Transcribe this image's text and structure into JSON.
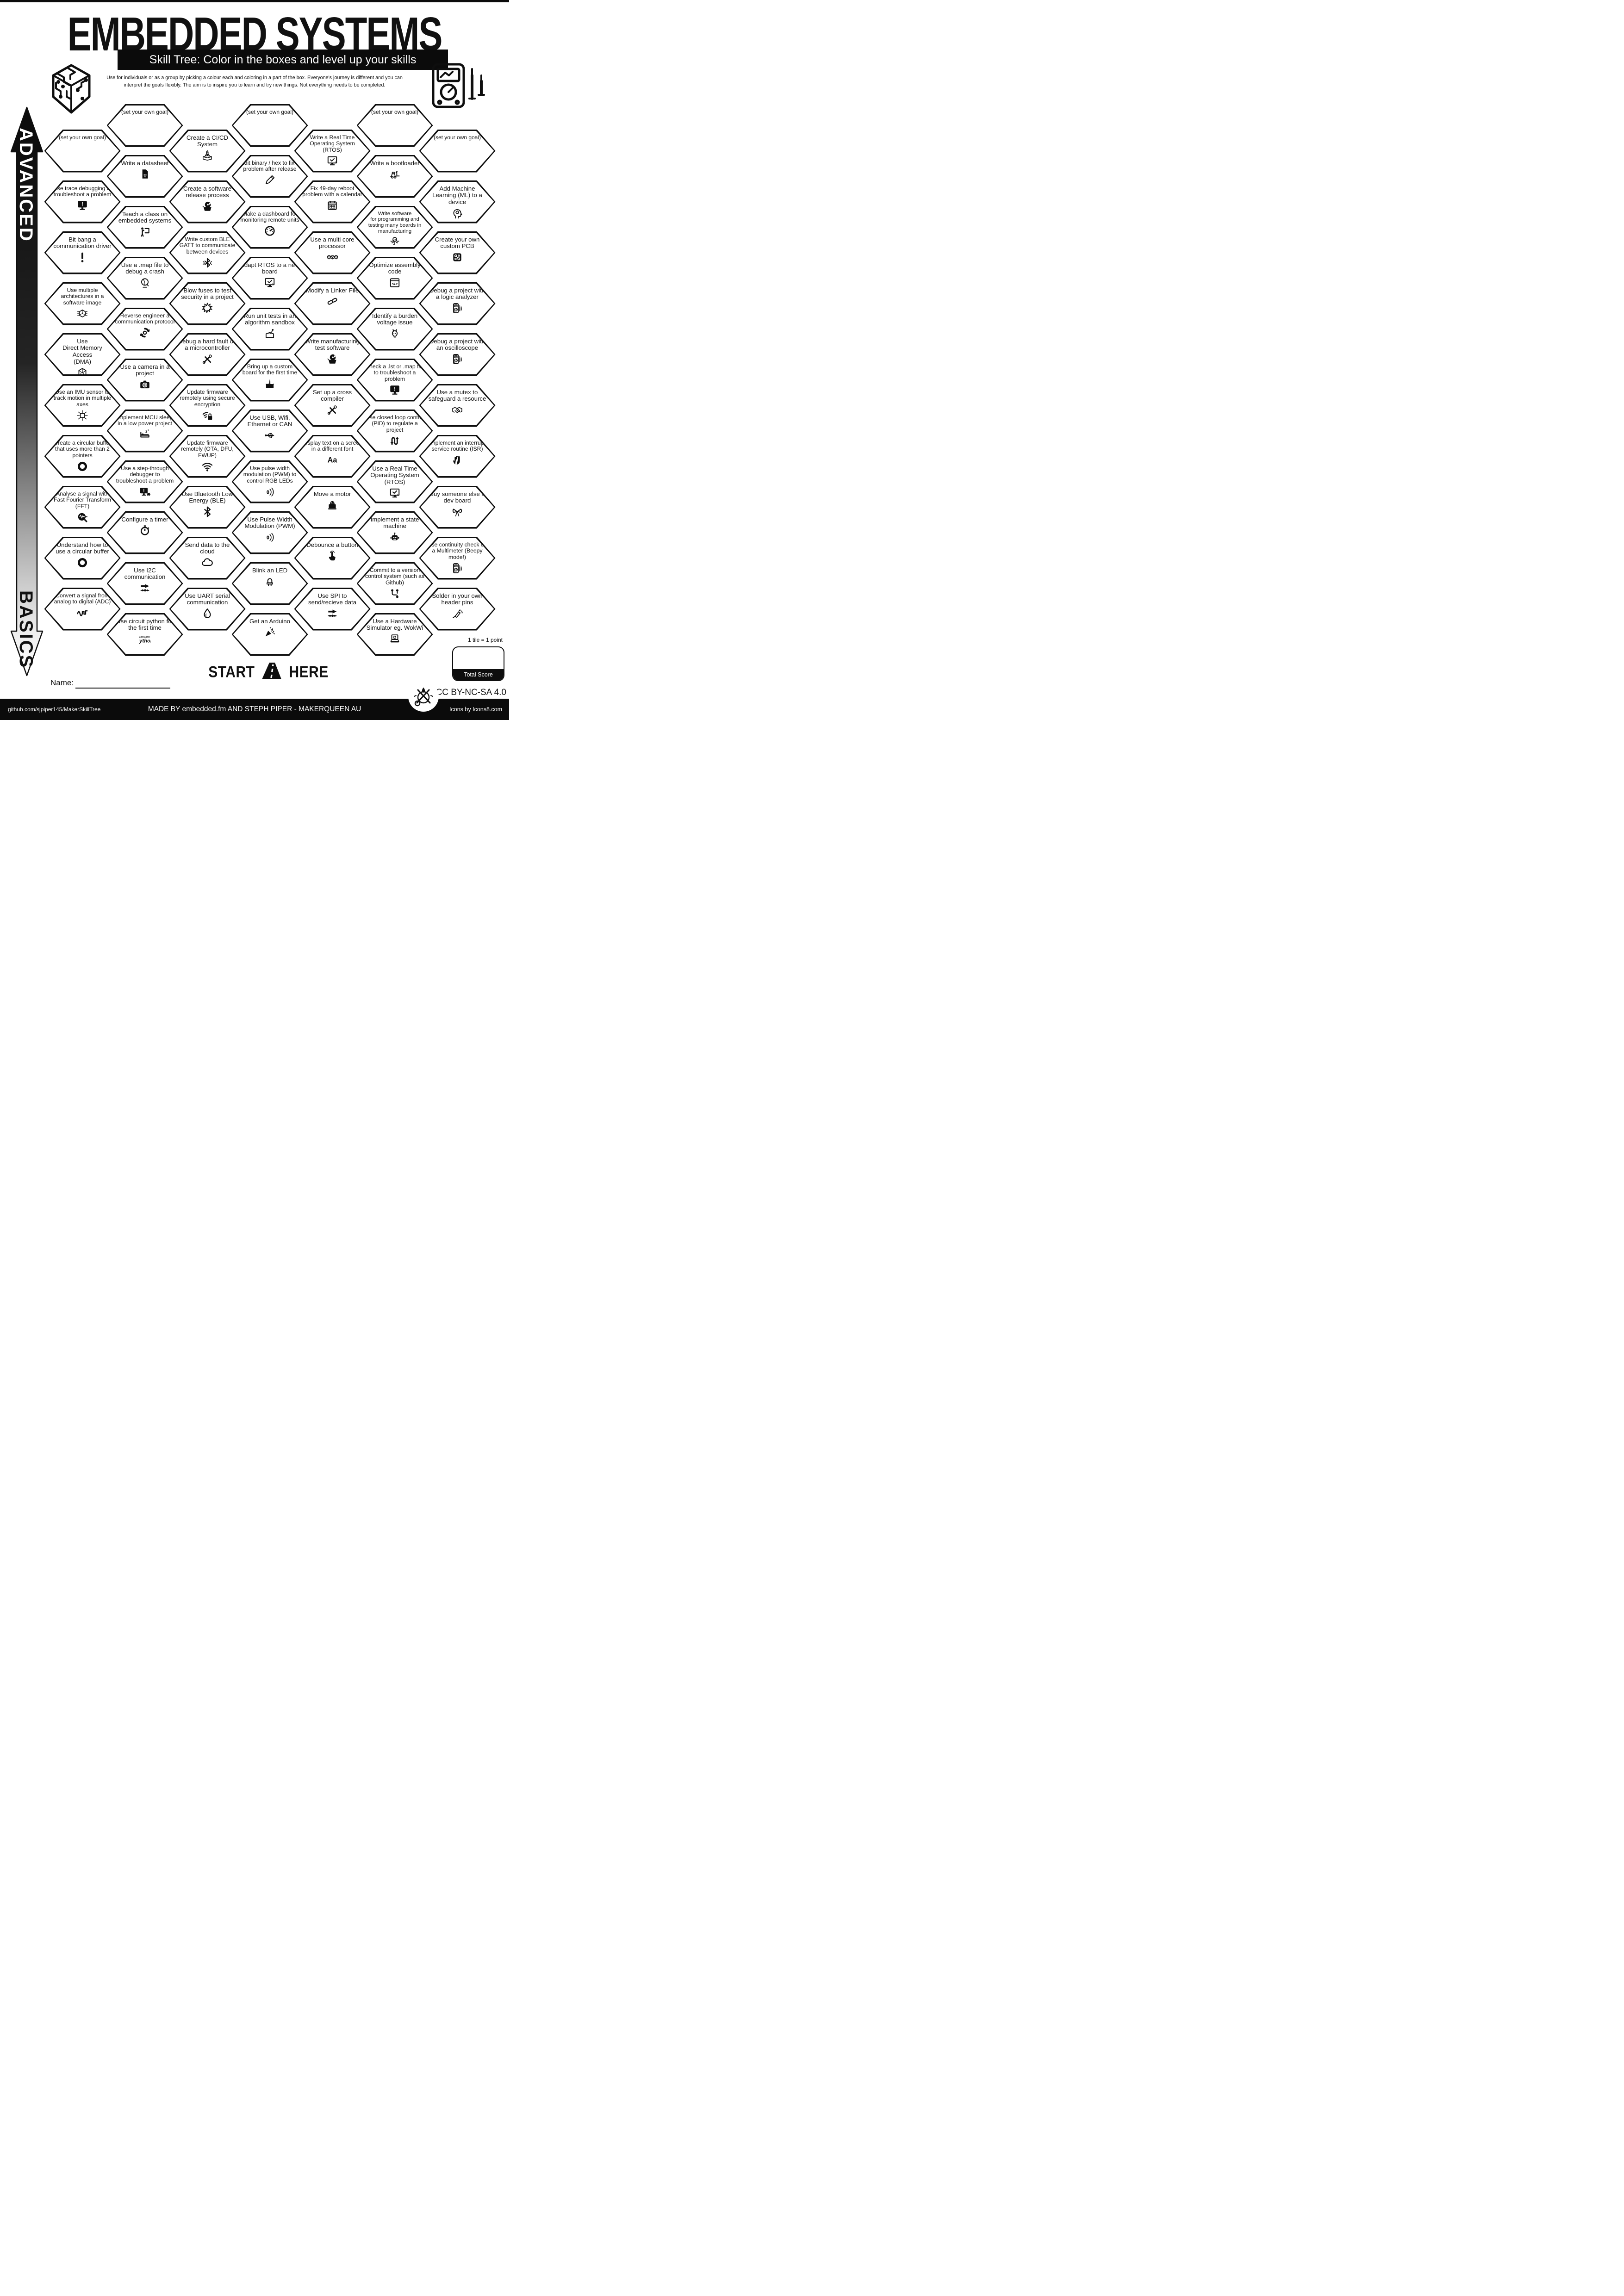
{
  "page": {
    "title": "EMBEDDED SYSTEMS",
    "subtitle": "Skill Tree:  Color in the boxes and level up your skills",
    "description": "Use for individuals or as a group by picking a colour each and coloring in a part of the box.  Everyone's journey is different and you can\ninterpret the goals flexibly.  The aim is to inspire you to learn and try new things. Not everything needs to be completed.",
    "advanced_label": "ADVANCED",
    "basics_label": "BASICS",
    "start_label": "START",
    "here_label": "HERE",
    "name_label": "Name:",
    "tile_point_note": "1 tile = 1 point",
    "total_score_label": "Total Score",
    "license": "CC BY-NC-SA 4.0",
    "footer": {
      "left": "github.com/sjpiper145/MakerSkillTree",
      "center": "MADE BY embedded.fm AND STEPH PIPER  -  MAKERQUEEN AU",
      "right": "Icons by Icons8.com"
    },
    "colors": {
      "ink": "#0e0e0e",
      "paper": "#ffffff"
    }
  },
  "tiles": [
    {
      "c": 0,
      "r": 0,
      "label": "(set your own goal)",
      "icon": "",
      "goal": true
    },
    {
      "c": 0,
      "r": 1,
      "label": "Use trace debugging to troubleshoot a problem",
      "icon": "monitor-exclaim"
    },
    {
      "c": 0,
      "r": 2,
      "label": "Bit bang a communication driver",
      "icon": "exclaim"
    },
    {
      "c": 0,
      "r": 3,
      "label": "Use multiple architectures in a software image",
      "icon": "arch-cube"
    },
    {
      "c": 0,
      "r": 4,
      "label": "Use\nDirect Memory Access\n(DMA)",
      "icon": "memory-cube"
    },
    {
      "c": 0,
      "r": 5,
      "label": "Use an IMU sensor to track motion in multiple axes",
      "icon": "axes-cube"
    },
    {
      "c": 0,
      "r": 6,
      "label": "Create a circular buffer that uses more than 2 pointers",
      "icon": "ring-buffer"
    },
    {
      "c": 0,
      "r": 7,
      "label": "Analyse a signal with Fast Fourier Transform (FFT)",
      "icon": "fft-magnifier"
    },
    {
      "c": 0,
      "r": 8,
      "label": "Understand how to use a circular buffer",
      "icon": "ring-buffer"
    },
    {
      "c": 0,
      "r": 9,
      "label": "Convert a signal from analog to digital (ADC)",
      "icon": "adc-wave"
    },
    {
      "c": 1,
      "r": 0,
      "label": "(set your own goal)",
      "icon": "",
      "goal": true
    },
    {
      "c": 1,
      "r": 1,
      "label": "Write a datasheet",
      "icon": "datasheet"
    },
    {
      "c": 1,
      "r": 2,
      "label": "Teach a class on embedded systems",
      "icon": "teacher"
    },
    {
      "c": 1,
      "r": 3,
      "label": "Use a .map file to debug a crash",
      "icon": "globe"
    },
    {
      "c": 1,
      "r": 4,
      "label": "Reverse engineer a communication protocol",
      "icon": "gear-cycle"
    },
    {
      "c": 1,
      "r": 5,
      "label": "Use a camera in a project",
      "icon": "camera"
    },
    {
      "c": 1,
      "r": 6,
      "label": "Implement MCU sleep in a low power project",
      "icon": "sleep-bed"
    },
    {
      "c": 1,
      "r": 7,
      "label": "Use a step-through debugger to troubleshoot a problem",
      "icon": "monitor-bug"
    },
    {
      "c": 1,
      "r": 8,
      "label": "Configure a timer",
      "icon": "stopwatch"
    },
    {
      "c": 1,
      "r": 9,
      "label": "Use I2C communication",
      "icon": "data-arrow"
    },
    {
      "c": 1,
      "r": 10,
      "label": "Use circuit python for the first time",
      "icon": "circuitpython"
    },
    {
      "c": 2,
      "r": 0,
      "label": "Create a CI/CD System",
      "icon": "rocket-box"
    },
    {
      "c": 2,
      "r": 1,
      "label": "Create a software release process",
      "icon": "box-disc"
    },
    {
      "c": 2,
      "r": 2,
      "label": "Write custom BLE GATT to communicate between devices",
      "icon": "bluetooth-burst"
    },
    {
      "c": 2,
      "r": 3,
      "label": "Blow fuses to test security in a project",
      "icon": "burst"
    },
    {
      "c": 2,
      "r": 4,
      "label": "Debug a hard fault on a microcontroller",
      "icon": "tools"
    },
    {
      "c": 2,
      "r": 5,
      "label": "Update firmware remotely using secure encryption",
      "icon": "wifi-lock"
    },
    {
      "c": 2,
      "r": 6,
      "label": "Update firmware remotely (OTA, DFU, FWUP)",
      "icon": "wifi"
    },
    {
      "c": 2,
      "r": 7,
      "label": "Use Bluetooth Low Energy (BLE)",
      "icon": "bluetooth"
    },
    {
      "c": 2,
      "r": 8,
      "label": "Send data to the cloud",
      "icon": "cloud"
    },
    {
      "c": 2,
      "r": 9,
      "label": "Use UART serial communication",
      "icon": "drop"
    },
    {
      "c": 3,
      "r": 0,
      "label": "(set your own goal)",
      "icon": "",
      "goal": true
    },
    {
      "c": 3,
      "r": 1,
      "label": "Edit binary / hex to fix a problem after release",
      "icon": "pencil"
    },
    {
      "c": 3,
      "r": 2,
      "label": "Make a dashboard for monitoring remote units",
      "icon": "gauge"
    },
    {
      "c": 3,
      "r": 3,
      "label": "Adapt RTOS to a new board",
      "icon": "monitor-check"
    },
    {
      "c": 3,
      "r": 4,
      "label": "Run unit tests in an algorithm sandbox",
      "icon": "sandbox"
    },
    {
      "c": 3,
      "r": 5,
      "label": "Bring up a custom board for the first time",
      "icon": "cake"
    },
    {
      "c": 3,
      "r": 6,
      "label": "Use USB, Wifi, Ethernet or CAN",
      "icon": "usb"
    },
    {
      "c": 3,
      "r": 7,
      "label": "Use pulse width modulation (PWM) to control RGB LEDs",
      "icon": "pwm-waves"
    },
    {
      "c": 3,
      "r": 8,
      "label": "Use Pulse Width Modulation (PWM)",
      "icon": "pwm-waves"
    },
    {
      "c": 3,
      "r": 9,
      "label": "Blink an LED",
      "icon": "led"
    },
    {
      "c": 3,
      "r": 10,
      "label": "Get an Arduino",
      "icon": "party"
    },
    {
      "c": 4,
      "r": 0,
      "label": "Write a Real Time Operating System (RTOS)",
      "icon": "monitor-check"
    },
    {
      "c": 4,
      "r": 1,
      "label": "Fix 49-day reboot problem with a calendar",
      "icon": "calendar"
    },
    {
      "c": 4,
      "r": 2,
      "label": "Use a multi core processor",
      "icon": "multi-cubes"
    },
    {
      "c": 4,
      "r": 3,
      "label": "Modify a Linker File",
      "icon": "chain"
    },
    {
      "c": 4,
      "r": 4,
      "label": "Write manufacturing test software",
      "icon": "box-disc"
    },
    {
      "c": 4,
      "r": 5,
      "label": "Set up a cross compiler",
      "icon": "tools"
    },
    {
      "c": 4,
      "r": 6,
      "label": "Display text on a screen in a different font",
      "icon": "font-aa"
    },
    {
      "c": 4,
      "r": 7,
      "label": "Move a motor",
      "icon": "motor"
    },
    {
      "c": 4,
      "r": 8,
      "label": "Debounce a button",
      "icon": "finger-press"
    },
    {
      "c": 4,
      "r": 9,
      "label": "Use SPI to send/recieve data",
      "icon": "data-arrow"
    },
    {
      "c": 5,
      "r": 0,
      "label": "(set your own goal)",
      "icon": "",
      "goal": true
    },
    {
      "c": 5,
      "r": 1,
      "label": "Write a bootloader",
      "icon": "forklift"
    },
    {
      "c": 5,
      "r": 2,
      "label": "Write software\nfor programming and testing many boards in manufacturing",
      "icon": "octopus"
    },
    {
      "c": 5,
      "r": 3,
      "label": "Optimize assembly code",
      "icon": "code-window"
    },
    {
      "c": 5,
      "r": 4,
      "label": "Identify a burden voltage issue",
      "icon": "donkey"
    },
    {
      "c": 5,
      "r": 5,
      "label": "Check a .lst or .map file to troubleshoot a problem",
      "icon": "monitor-exclaim"
    },
    {
      "c": 5,
      "r": 6,
      "label": "Use closed loop control (PID) to regulate a project",
      "icon": "pid-arrows"
    },
    {
      "c": 5,
      "r": 7,
      "label": "Use a Real Time Operating System (RTOS)",
      "icon": "monitor-check"
    },
    {
      "c": 5,
      "r": 8,
      "label": "Implement a state machine",
      "icon": "robot"
    },
    {
      "c": 5,
      "r": 9,
      "label": "Commit to a version control system (such as Github)",
      "icon": "git-branch"
    },
    {
      "c": 5,
      "r": 10,
      "label": "Use a Hardware Simulator eg. WokWi",
      "icon": "laptop-sim"
    },
    {
      "c": 6,
      "r": 0,
      "label": "(set your own goal)",
      "icon": "",
      "goal": true
    },
    {
      "c": 6,
      "r": 1,
      "label": "Add Machine Learning (ML) to a device",
      "icon": "head-gear"
    },
    {
      "c": 6,
      "r": 2,
      "label": "Create your own custom PCB",
      "icon": "pcb"
    },
    {
      "c": 6,
      "r": 3,
      "label": "Debug a project with a logic analyzer",
      "icon": "multimeter"
    },
    {
      "c": 6,
      "r": 4,
      "label": "Debug a project with an oscilloscope",
      "icon": "multimeter"
    },
    {
      "c": 6,
      "r": 5,
      "label": "Use a mutex to safeguard a resource",
      "icon": "handshake"
    },
    {
      "c": 6,
      "r": 6,
      "label": "Implement an interrupt service routine (ISR)",
      "icon": "hand-stop"
    },
    {
      "c": 6,
      "r": 7,
      "label": "Buy someone else a dev board",
      "icon": "gift-bow"
    },
    {
      "c": 6,
      "r": 8,
      "label": "Use continuity check on a Multimeter (Beepy mode!)",
      "icon": "multimeter"
    },
    {
      "c": 6,
      "r": 9,
      "label": "Solder in your own header pins",
      "icon": "soldering-iron"
    }
  ]
}
